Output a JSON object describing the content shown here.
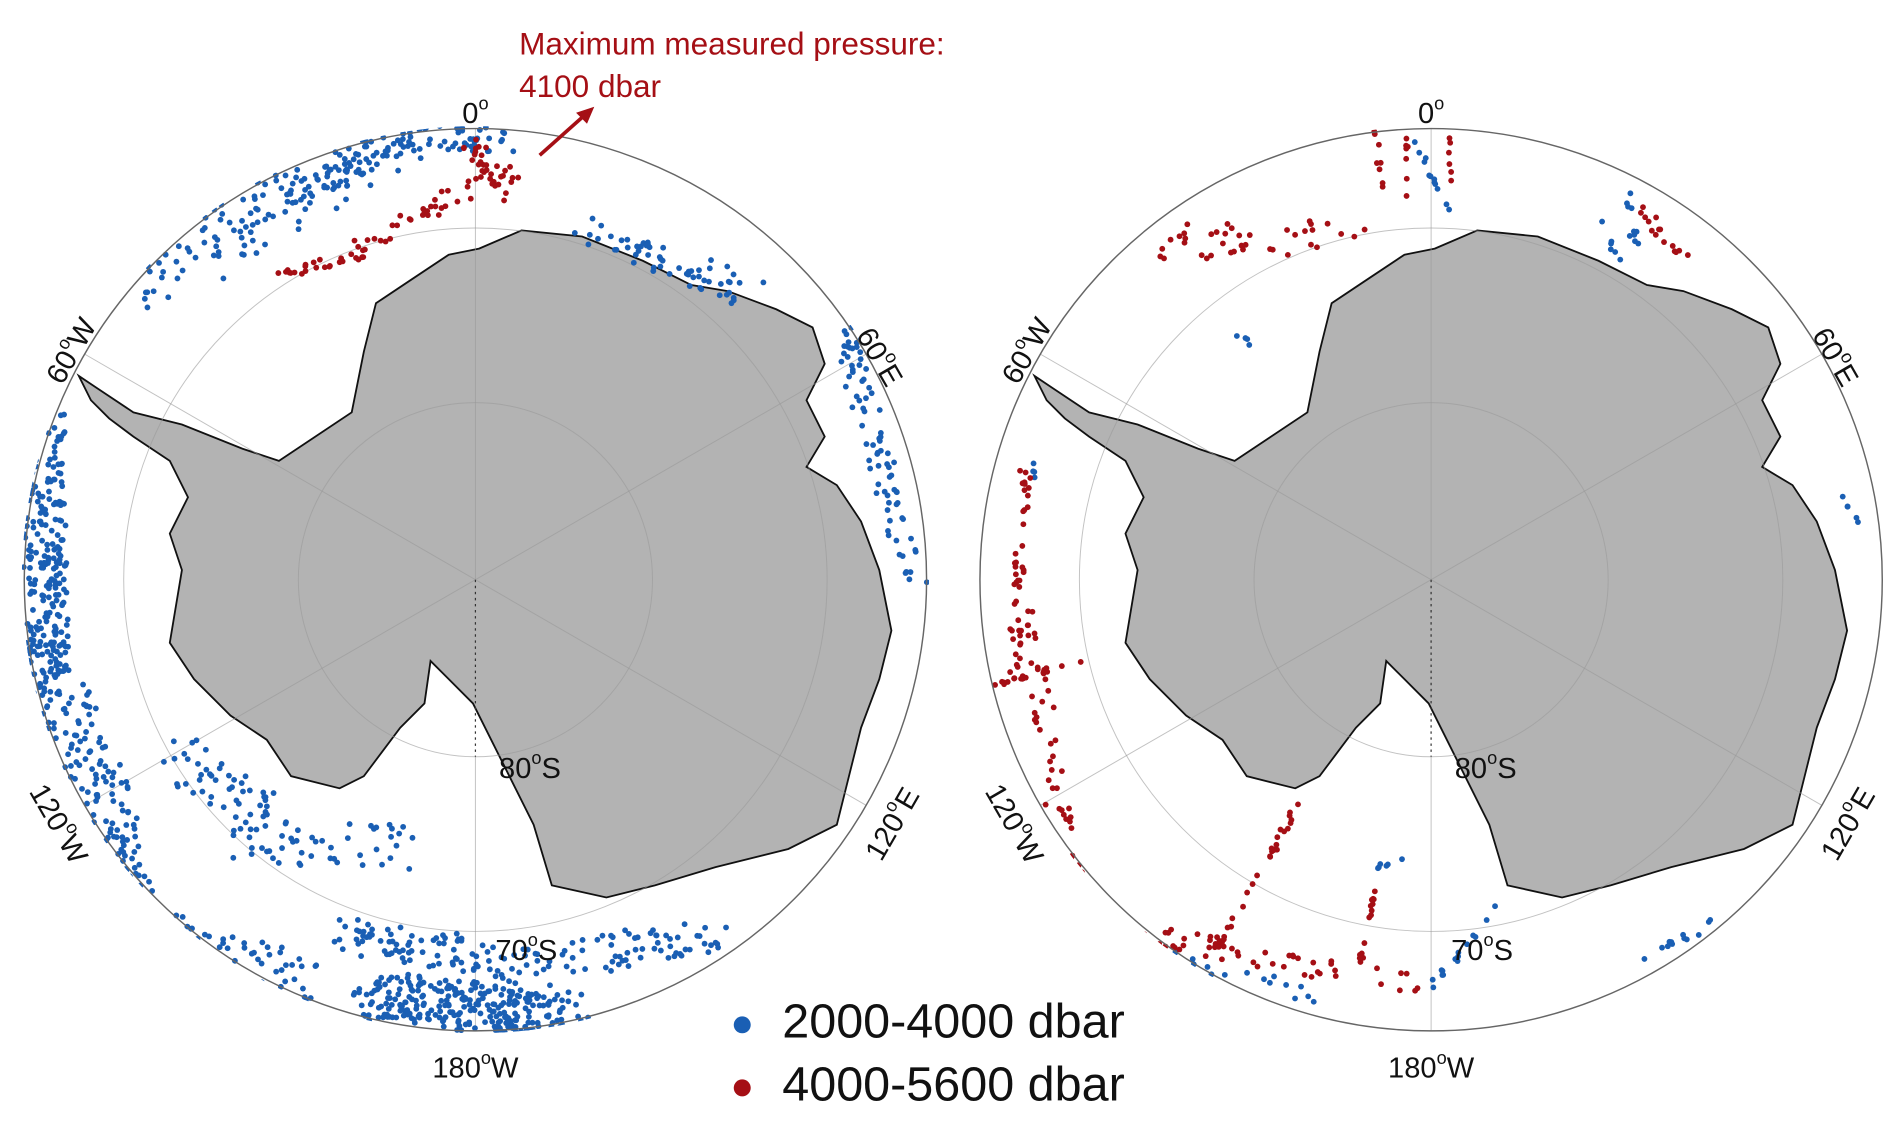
{
  "annotation": {
    "line1": "Maximum measured pressure:",
    "line2": "4100 dbar"
  },
  "maps": [
    {
      "labels": [
        {
          "main": "0",
          "sup": "o",
          "suffix": ""
        },
        {
          "main": "60",
          "sup": "o",
          "suffix": "W"
        },
        {
          "main": "60",
          "sup": "o",
          "suffix": "E"
        },
        {
          "main": "120",
          "sup": "o",
          "suffix": "W"
        },
        {
          "main": "120",
          "sup": "o",
          "suffix": "E"
        },
        {
          "main": "180",
          "sup": "o",
          "suffix": "W"
        },
        {
          "main": "80",
          "sup": "o",
          "suffix": "S"
        },
        {
          "main": "70",
          "sup": "o",
          "suffix": "S"
        }
      ]
    },
    {
      "labels": [
        {
          "main": "0",
          "sup": "o",
          "suffix": ""
        },
        {
          "main": "60",
          "sup": "o",
          "suffix": "W"
        },
        {
          "main": "60",
          "sup": "o",
          "suffix": "E"
        },
        {
          "main": "120",
          "sup": "o",
          "suffix": "W"
        },
        {
          "main": "120",
          "sup": "o",
          "suffix": "E"
        },
        {
          "main": "180",
          "sup": "o",
          "suffix": "W"
        },
        {
          "main": "80",
          "sup": "o",
          "suffix": "S"
        },
        {
          "main": "70",
          "sup": "o",
          "suffix": "S"
        }
      ]
    }
  ],
  "legend": [
    {
      "label": "2000-4000 dbar",
      "color": "#1a5fb4"
    },
    {
      "label": "4000-5600 dbar",
      "color": "#a50f15"
    }
  ]
}
